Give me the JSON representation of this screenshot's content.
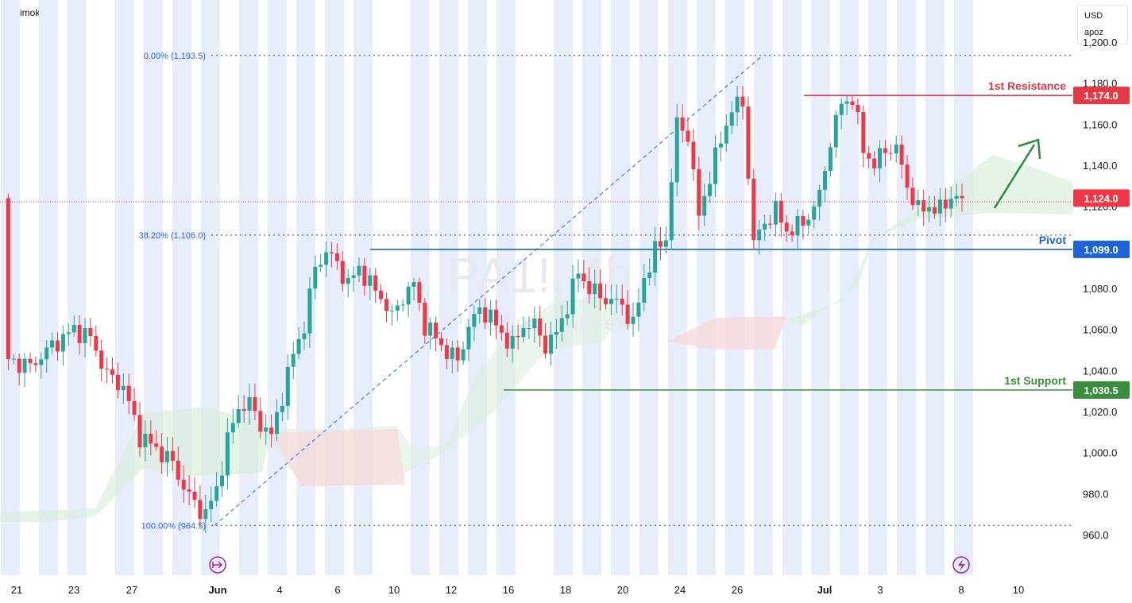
{
  "indicator_label": "Ichimoku",
  "currency": {
    "code": "USD",
    "unit": "apoz"
  },
  "watermark": {
    "symbol": "PA1!, 4h",
    "name": "Palladium Futures"
  },
  "colors": {
    "up": "#26a69a",
    "down": "#f23645",
    "resistance": "#e53945",
    "support": "#388e3c",
    "pivot": "#1e63d6",
    "fib": "#2962ff",
    "session_band": "#e8edfb"
  },
  "chart_data": {
    "type": "candlestick",
    "ylim": [
      950,
      1200
    ],
    "y_ticks": [
      "960.0",
      "980.0",
      "1,000.0",
      "1,020.0",
      "1,040.0",
      "1,060.0",
      "1,080.0",
      "1,100.0",
      "1,120.0",
      "1,140.0",
      "1,160.0",
      "1,180.0",
      "1,200.0"
    ],
    "x_ticks": [
      "21",
      "23",
      "27",
      "Jun",
      "4",
      "6",
      "10",
      "12",
      "16",
      "18",
      "20",
      "24",
      "26",
      "Jul",
      "3",
      "8",
      "10"
    ],
    "levels": [
      {
        "name": "1st Resistance",
        "value": 1174.0,
        "tag": "1,174.0"
      },
      {
        "name": "Pivot",
        "value": 1099.0,
        "tag": "1,099.0"
      },
      {
        "name": "1st Support",
        "value": 1030.5,
        "tag": "1,030.5"
      }
    ],
    "last_price": {
      "value": 1124.0,
      "tag": "1,124.0"
    },
    "fibonacci": [
      {
        "label": "0.00% (1,193.5)",
        "value": 1193.5
      },
      {
        "label": "38.20% (1,106.0)",
        "value": 1106.0
      },
      {
        "label": "100.00% (964.5)",
        "value": 964.5
      }
    ],
    "forecast": "up",
    "price_path": [
      [
        1,
        1045
      ],
      [
        5,
        1042
      ],
      [
        9,
        1052
      ],
      [
        13,
        1060
      ],
      [
        16,
        1056
      ],
      [
        19,
        1038
      ],
      [
        22,
        1032
      ],
      [
        25,
        1008
      ],
      [
        28,
        1002
      ],
      [
        31,
        995
      ],
      [
        33,
        983
      ],
      [
        35,
        975
      ],
      [
        37,
        970
      ],
      [
        39,
        982
      ],
      [
        41,
        1006
      ],
      [
        43,
        1022
      ],
      [
        45,
        1024
      ],
      [
        47,
        1014
      ],
      [
        49,
        1008
      ],
      [
        51,
        1028
      ],
      [
        53,
        1048
      ],
      [
        55,
        1062
      ],
      [
        57,
        1090
      ],
      [
        59,
        1098
      ],
      [
        61,
        1092
      ],
      [
        63,
        1082
      ],
      [
        65,
        1090
      ],
      [
        67,
        1082
      ],
      [
        69,
        1076
      ],
      [
        71,
        1066
      ],
      [
        73,
        1076
      ],
      [
        75,
        1082
      ],
      [
        77,
        1062
      ],
      [
        79,
        1056
      ],
      [
        81,
        1049
      ],
      [
        83,
        1045
      ],
      [
        85,
        1061
      ],
      [
        87,
        1070
      ],
      [
        89,
        1066
      ],
      [
        91,
        1058
      ],
      [
        93,
        1052
      ],
      [
        95,
        1062
      ],
      [
        97,
        1062
      ],
      [
        99,
        1052
      ],
      [
        101,
        1058
      ],
      [
        103,
        1072
      ],
      [
        105,
        1088
      ],
      [
        107,
        1080
      ],
      [
        109,
        1076
      ],
      [
        111,
        1074
      ],
      [
        113,
        1072
      ],
      [
        115,
        1062
      ],
      [
        117,
        1085
      ],
      [
        119,
        1098
      ],
      [
        121,
        1105
      ],
      [
        123,
        1160
      ],
      [
        125,
        1155
      ],
      [
        127,
        1115
      ],
      [
        129,
        1135
      ],
      [
        131,
        1152
      ],
      [
        133,
        1168
      ],
      [
        135,
        1170
      ],
      [
        137,
        1102
      ],
      [
        139,
        1112
      ],
      [
        141,
        1118
      ],
      [
        143,
        1108
      ],
      [
        145,
        1110
      ],
      [
        147,
        1115
      ],
      [
        149,
        1125
      ],
      [
        151,
        1152
      ],
      [
        153,
        1170
      ],
      [
        155,
        1173
      ],
      [
        157,
        1148
      ],
      [
        159,
        1140
      ],
      [
        161,
        1148
      ],
      [
        163,
        1148
      ],
      [
        165,
        1130
      ],
      [
        167,
        1118
      ],
      [
        169,
        1120
      ],
      [
        171,
        1118
      ],
      [
        173,
        1125
      ],
      [
        175,
        1124
      ]
    ]
  }
}
